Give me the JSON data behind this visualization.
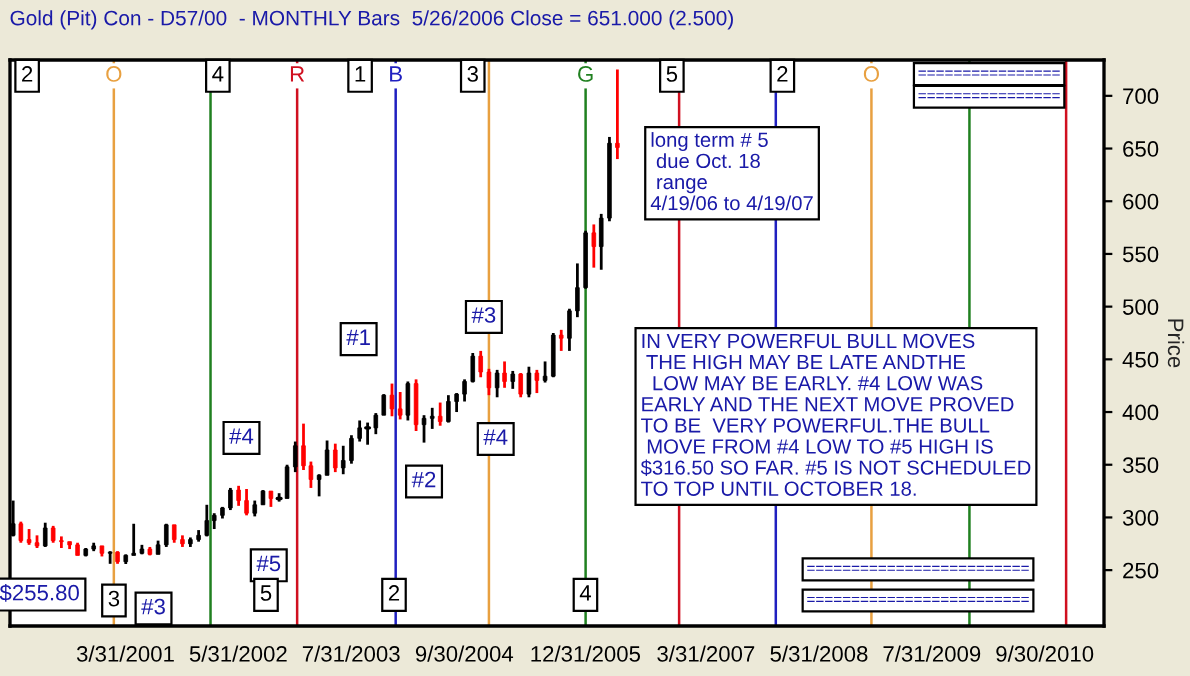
{
  "chart_data": {
    "type": "candlestick",
    "title": "Gold (Pit) Con - D57/00  - MONTHLY Bars  5/26/2006 Close = 651.000 (2.500)",
    "ylabel": "Price",
    "x": [
      "2000-02",
      "2000-03",
      "2000-04",
      "2000-05",
      "2000-06",
      "2000-07",
      "2000-08",
      "2000-09",
      "2000-10",
      "2000-11",
      "2000-12",
      "2001-01",
      "2001-02",
      "2001-03",
      "2001-04",
      "2001-05",
      "2001-06",
      "2001-07",
      "2001-08",
      "2001-09",
      "2001-10",
      "2001-11",
      "2001-12",
      "2002-01",
      "2002-02",
      "2002-03",
      "2002-04",
      "2002-05",
      "2002-06",
      "2002-07",
      "2002-08",
      "2002-09",
      "2002-10",
      "2002-11",
      "2002-12",
      "2003-01",
      "2003-02",
      "2003-03",
      "2003-04",
      "2003-05",
      "2003-06",
      "2003-07",
      "2003-08",
      "2003-09",
      "2003-10",
      "2003-11",
      "2003-12",
      "2004-01",
      "2004-02",
      "2004-03",
      "2004-04",
      "2004-05",
      "2004-06",
      "2004-07",
      "2004-08",
      "2004-09",
      "2004-10",
      "2004-11",
      "2004-12",
      "2005-01",
      "2005-02",
      "2005-03",
      "2005-04",
      "2005-05",
      "2005-06",
      "2005-07",
      "2005-08",
      "2005-09",
      "2005-10",
      "2005-11",
      "2005-12",
      "2006-01",
      "2006-02",
      "2006-03",
      "2006-04",
      "2006-05"
    ],
    "ohlc": [
      [
        283,
        316,
        282,
        294
      ],
      [
        294,
        296,
        276,
        278
      ],
      [
        279,
        289,
        274,
        276
      ],
      [
        276,
        283,
        271,
        273
      ],
      [
        273,
        295,
        272,
        290
      ],
      [
        290,
        292,
        276,
        278
      ],
      [
        278,
        282,
        271,
        277
      ],
      [
        277,
        277,
        270,
        274
      ],
      [
        274,
        276,
        264,
        264
      ],
      [
        264,
        271,
        263,
        270
      ],
      [
        270,
        276,
        268,
        273
      ],
      [
        273,
        273,
        263,
        266
      ],
      [
        266,
        268,
        256,
        267
      ],
      [
        267,
        268,
        256,
        258
      ],
      [
        258,
        265,
        255.8,
        264
      ],
      [
        264,
        294,
        264,
        266
      ],
      [
        266,
        274,
        265,
        270
      ],
      [
        270,
        272,
        264,
        265
      ],
      [
        265,
        278,
        265,
        274
      ],
      [
        274,
        294,
        272,
        293
      ],
      [
        293,
        293,
        276,
        279
      ],
      [
        279,
        283,
        272,
        275
      ],
      [
        275,
        281,
        272,
        279
      ],
      [
        279,
        288,
        277,
        283
      ],
      [
        283,
        312,
        282,
        297
      ],
      [
        297,
        304,
        289,
        302
      ],
      [
        302,
        310,
        299,
        309
      ],
      [
        309,
        328,
        307,
        326
      ],
      [
        326,
        330,
        311,
        316
      ],
      [
        316,
        327,
        302,
        304
      ],
      [
        304,
        316,
        301,
        312
      ],
      [
        312,
        326,
        312,
        325
      ],
      [
        325,
        325,
        310,
        318
      ],
      [
        318,
        323,
        315,
        318
      ],
      [
        318,
        350,
        318,
        348
      ],
      [
        348,
        372,
        343,
        368
      ],
      [
        368,
        389,
        345,
        349
      ],
      [
        349,
        353,
        328,
        336
      ],
      [
        336,
        341,
        320,
        340
      ],
      [
        340,
        373,
        340,
        364
      ],
      [
        364,
        370,
        343,
        347
      ],
      [
        347,
        368,
        341,
        354
      ],
      [
        354,
        378,
        351,
        375
      ],
      [
        375,
        392,
        372,
        385
      ],
      [
        385,
        390,
        369,
        385
      ],
      [
        385,
        399,
        379,
        397
      ],
      [
        397,
        417,
        397,
        416
      ],
      [
        416,
        427,
        396,
        403
      ],
      [
        403,
        419,
        393,
        397
      ],
      [
        397,
        429,
        392,
        427
      ],
      [
        427,
        431,
        382,
        388
      ],
      [
        388,
        397,
        371,
        394
      ],
      [
        394,
        404,
        384,
        396
      ],
      [
        396,
        409,
        387,
        391
      ],
      [
        391,
        416,
        390,
        410
      ],
      [
        410,
        418,
        400,
        417
      ],
      [
        417,
        431,
        410,
        429
      ],
      [
        429,
        456,
        428,
        453
      ],
      [
        453,
        458,
        433,
        438
      ],
      [
        438,
        441,
        416,
        423
      ],
      [
        423,
        440,
        414,
        437
      ],
      [
        437,
        448,
        423,
        429
      ],
      [
        429,
        439,
        422,
        436
      ],
      [
        436,
        437,
        414,
        417
      ],
      [
        417,
        443,
        414,
        437
      ],
      [
        437,
        440,
        418,
        430
      ],
      [
        430,
        448,
        428,
        434
      ],
      [
        434,
        475,
        433,
        473
      ],
      [
        473,
        478,
        458,
        470
      ],
      [
        470,
        498,
        458,
        496
      ],
      [
        496,
        541,
        490,
        518
      ],
      [
        518,
        572,
        517,
        570
      ],
      [
        570,
        578,
        537,
        557
      ],
      [
        557,
        588,
        535,
        584
      ],
      [
        584,
        661,
        581,
        655
      ],
      [
        655,
        725,
        640,
        651
      ]
    ],
    "colors": [
      "#000000",
      "#ff0000",
      "#ff0000",
      "#ff0000",
      "#000000",
      "#ff0000",
      "#ff0000",
      "#ff0000",
      "#ff0000",
      "#000000",
      "#000000",
      "#ff0000",
      "#000000",
      "#ff0000",
      "#000000",
      "#000000",
      "#000000",
      "#ff0000",
      "#000000",
      "#000000",
      "#ff0000",
      "#ff0000",
      "#000000",
      "#000000",
      "#000000",
      "#000000",
      "#000000",
      "#000000",
      "#ff0000",
      "#ff0000",
      "#000000",
      "#000000",
      "#ff0000",
      "#000000",
      "#000000",
      "#000000",
      "#ff0000",
      "#ff0000",
      "#000000",
      "#000000",
      "#ff0000",
      "#000000",
      "#000000",
      "#000000",
      "#000000",
      "#000000",
      "#000000",
      "#ff0000",
      "#ff0000",
      "#000000",
      "#ff0000",
      "#000000",
      "#000000",
      "#ff0000",
      "#000000",
      "#000000",
      "#000000",
      "#000000",
      "#ff0000",
      "#ff0000",
      "#000000",
      "#ff0000",
      "#000000",
      "#ff0000",
      "#000000",
      "#ff0000",
      "#000000",
      "#000000",
      "#ff0000",
      "#000000",
      "#000000",
      "#000000",
      "#ff0000",
      "#000000",
      "#000000",
      "#ff0000"
    ],
    "xlim": [
      "2000-01-20",
      "2011-05-12"
    ],
    "xticks": [
      {
        "value": "2001-03-31",
        "label": "3/31/2001"
      },
      {
        "value": "2002-05-31",
        "label": "5/31/2002"
      },
      {
        "value": "2003-07-31",
        "label": "7/31/2003"
      },
      {
        "value": "2004-09-30",
        "label": "9/30/2004"
      },
      {
        "value": "2005-12-31",
        "label": "12/31/2005"
      },
      {
        "value": "2007-03-31",
        "label": "3/31/2007"
      },
      {
        "value": "2008-05-31",
        "label": "5/31/2008"
      },
      {
        "value": "2009-07-31",
        "label": "7/31/2009"
      },
      {
        "value": "2010-09-30",
        "label": "9/30/2010"
      }
    ],
    "ylim": [
      197,
      734
    ],
    "yticks": [
      250,
      300,
      350,
      400,
      450,
      500,
      550,
      600,
      650,
      700
    ],
    "ref_lines": [
      {
        "axis": "x",
        "value": "2001-02-15",
        "label": "O",
        "color": "#e8a040"
      },
      {
        "axis": "x",
        "value": "2002-02-15",
        "color": "#208020"
      },
      {
        "axis": "x",
        "value": "2003-01-08",
        "label": "R",
        "color": "#d01020"
      },
      {
        "axis": "x",
        "value": "2004-01-15",
        "label": "B",
        "color": "#2020c0"
      },
      {
        "axis": "x",
        "value": "2005-01-01",
        "color": "#e8a040"
      },
      {
        "axis": "x",
        "value": "2006-01-01",
        "label": "G",
        "color": "#208020"
      },
      {
        "axis": "x",
        "value": "2006-12-20",
        "color": "#d01020"
      },
      {
        "axis": "x",
        "value": "2007-12-20",
        "color": "#2020c0"
      },
      {
        "axis": "x",
        "value": "2008-12-15",
        "label": "O",
        "color": "#e8a040"
      },
      {
        "axis": "x",
        "value": "2009-12-20",
        "color": "#208020"
      },
      {
        "axis": "x",
        "value": "2010-12-20",
        "color": "#d01020"
      }
    ],
    "annotations": [
      {
        "text": "#1",
        "x": "2004-01",
        "y": 427
      },
      {
        "text": "#2",
        "x": "2004-05",
        "y": 371
      },
      {
        "text": "#3",
        "x": "2004-11",
        "y": 456
      },
      {
        "text": "#4",
        "x": "2005-05",
        "y": 414
      },
      {
        "text": "#4",
        "x": "2002-05",
        "y": 328
      },
      {
        "text": "#5",
        "x": "2002-07",
        "y": 302
      },
      {
        "text": "#3",
        "x": "2001-04",
        "y": 255.8
      },
      {
        "text": "$255.80",
        "x": "2001-04",
        "y": 255.8
      },
      "long term # 5\n due Oct. 18\n range\n4/19/06 to 4/19/07",
      "IN VERY POWERFUL BULL MOVES\n THE HIGH MAY BE LATE ANDTHE\n  LOW MAY BE EARLY. #4 LOW WAS\nEARLY AND THE NEXT MOVE PROVED\nTO BE  VERY POWERFUL.THE BULL\n MOVE FROM #4 LOW TO #5 HIGH IS\n$316.50 SO FAR. #5 IS NOT SCHEDULED\nTO TOP UNTIL OCTOBER 18.",
      "2",
      "4",
      "1",
      "3",
      "5",
      "2",
      "3",
      "5",
      "2",
      "4",
      "================",
      "================",
      "=========================",
      "========================="
    ]
  }
}
